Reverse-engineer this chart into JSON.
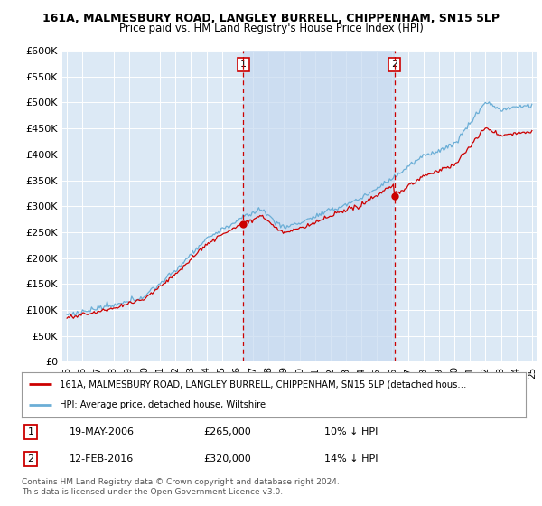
{
  "title1": "161A, MALMESBURY ROAD, LANGLEY BURRELL, CHIPPENHAM, SN15 5LP",
  "title2": "Price paid vs. HM Land Registry's House Price Index (HPI)",
  "hpi_color": "#6baed6",
  "price_color": "#cc0000",
  "vline_color": "#cc0000",
  "bg_color": "#dce9f5",
  "shade_color": "#c6d9f0",
  "sale1_date": "19-MAY-2006",
  "sale1_price": 265000,
  "sale1_label": "10% ↓ HPI",
  "sale2_date": "12-FEB-2016",
  "sale2_price": 320000,
  "sale2_label": "14% ↓ HPI",
  "legend1": "161A, MALMESBURY ROAD, LANGLEY BURRELL, CHIPPENHAM, SN15 5LP (detached hous…",
  "legend2": "HPI: Average price, detached house, Wiltshire",
  "footnote": "Contains HM Land Registry data © Crown copyright and database right 2024.\nThis data is licensed under the Open Government Licence v3.0.",
  "ylim": [
    0,
    600000
  ],
  "yticks": [
    0,
    50000,
    100000,
    150000,
    200000,
    250000,
    300000,
    350000,
    400000,
    450000,
    500000,
    550000,
    600000
  ],
  "sale1_t": 2006.38,
  "sale2_t": 2016.12
}
